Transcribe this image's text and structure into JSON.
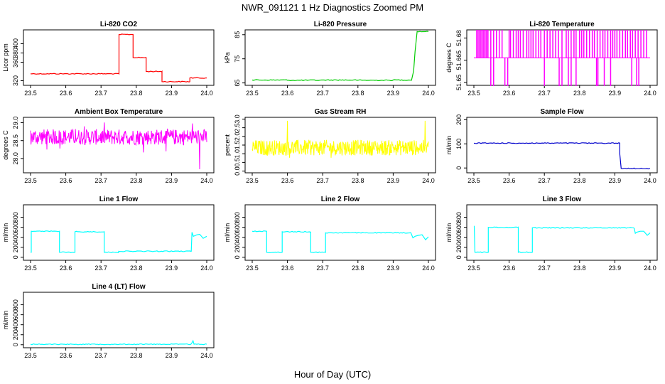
{
  "main_title": "NWR_091121  1 Hz Diagnostics Zoomed PM",
  "xlabel": "Hour of Day (UTC)",
  "chart_data": [
    {
      "type": "line",
      "title": "Li-820 CO2",
      "ylabel": "Licor ppm",
      "color": "#ff0000",
      "xlim": [
        23.5,
        24.0
      ],
      "ylim": [
        310,
        430
      ],
      "xticks": [
        "23.5",
        "23.6",
        "23.7",
        "23.8",
        "23.9",
        "24.0"
      ],
      "yticks": [
        {
          "v": 320,
          "label": "320"
        },
        {
          "v": 360,
          "label": "360"
        },
        {
          "v": 380,
          "label": "380"
        },
        {
          "v": 400,
          "label": "400"
        }
      ],
      "series": [
        {
          "name": "CO2",
          "x": [
            23.5,
            23.751,
            23.751,
            23.791,
            23.791,
            23.828,
            23.828,
            23.873,
            23.873,
            23.952,
            23.952,
            24.0
          ],
          "y": [
            335,
            335,
            420,
            420,
            370,
            370,
            340,
            340,
            318,
            318,
            326,
            326
          ]
        }
      ]
    },
    {
      "type": "line",
      "title": "Li-820 Pressure",
      "ylabel": "kPa",
      "color": "#00cc00",
      "xlim": [
        23.5,
        24.0
      ],
      "ylim": [
        64,
        87
      ],
      "xticks": [
        "23.5",
        "23.6",
        "23.7",
        "23.8",
        "23.9",
        "24.0"
      ],
      "yticks": [
        {
          "v": 65,
          "label": "65"
        },
        {
          "v": 75,
          "label": "75"
        },
        {
          "v": 85,
          "label": "85"
        }
      ],
      "series": [
        {
          "name": "Pressure",
          "x": [
            23.5,
            23.6,
            23.7,
            23.8,
            23.9,
            23.952,
            23.958,
            23.962,
            23.968,
            24.0
          ],
          "y": [
            66.2,
            66.1,
            66.2,
            66.1,
            66.2,
            66.1,
            70,
            78,
            86.3,
            86.3
          ]
        }
      ]
    },
    {
      "type": "line",
      "title": "Li-820 Temperature",
      "ylabel": "degrees C",
      "color": "#ff00ff",
      "xlim": [
        23.5,
        24.0
      ],
      "ylim": [
        51.648,
        51.6855
      ],
      "xticks": [
        "23.5",
        "23.6",
        "23.7",
        "23.8",
        "23.9",
        "24.0"
      ],
      "yticks": [
        {
          "v": 51.65,
          "label": "51.65"
        },
        {
          "v": 51.665,
          "label": "51.665"
        },
        {
          "v": 51.68,
          "label": "51.68"
        }
      ],
      "series": [
        {
          "name": "Temperature",
          "base": 51.6666,
          "high": 51.6855,
          "low": 51.6475,
          "spikes_high": [
            23.508,
            23.512,
            23.516,
            23.52,
            23.524,
            23.528,
            23.532,
            23.536,
            23.54,
            23.548,
            23.556,
            23.564,
            23.572,
            23.58,
            23.6,
            23.604,
            23.612,
            23.62,
            23.626,
            23.632,
            23.64,
            23.65,
            23.656,
            23.662,
            23.668,
            23.676,
            23.684,
            23.69,
            23.7,
            23.708,
            23.716,
            23.724,
            23.732,
            23.74,
            23.75,
            23.762,
            23.768,
            23.776,
            23.784,
            23.79,
            23.8,
            23.806,
            23.812,
            23.82,
            23.828,
            23.836,
            23.842,
            23.85,
            23.858,
            23.866,
            23.872,
            23.88,
            23.888,
            23.894,
            23.9,
            23.906,
            23.914,
            23.922,
            23.93,
            23.936,
            23.944,
            23.95,
            23.958,
            23.966,
            23.974,
            23.982,
            23.99
          ],
          "spikes_low": [
            23.548,
            23.556,
            23.588,
            23.596,
            23.7,
            23.742,
            23.75,
            23.768,
            23.776,
            23.79,
            23.848,
            23.852,
            23.87,
            23.888,
            23.948,
            23.962,
            23.968
          ]
        }
      ]
    },
    {
      "type": "line",
      "title": "Ambient Box Temperature",
      "ylabel": "degrees C",
      "color": "#ff00ff",
      "xlim": [
        23.5,
        24.0
      ],
      "ylim": [
        27.6,
        29.15
      ],
      "xticks": [
        "23.5",
        "23.6",
        "23.7",
        "23.8",
        "23.9",
        "24.0"
      ],
      "yticks": [
        {
          "v": 28.0,
          "label": "28.0"
        },
        {
          "v": 28.5,
          "label": "28.5"
        },
        {
          "v": 29.0,
          "label": "29.0"
        }
      ],
      "series": [
        {
          "name": "Box Temp",
          "mean": 28.6,
          "noise": 0.22,
          "spike_low": 27.7
        }
      ]
    },
    {
      "type": "line",
      "title": "Gas Stream RH",
      "ylabel": "percent",
      "color": "#ffff00",
      "xlim": [
        23.5,
        24.0
      ],
      "ylim": [
        -0.1,
        3.1
      ],
      "xticks": [
        "23.5",
        "23.6",
        "23.7",
        "23.8",
        "23.9",
        "24.0"
      ],
      "yticks": [
        {
          "v": 0.0,
          "label": "0.0"
        },
        {
          "v": 0.5,
          "label": "0.5"
        },
        {
          "v": 1.0,
          "label": "1.0"
        },
        {
          "v": 1.5,
          "label": "1.5"
        },
        {
          "v": 2.0,
          "label": "2.0"
        },
        {
          "v": 2.5,
          "label": "2.5"
        },
        {
          "v": 3.0,
          "label": "3.0"
        }
      ],
      "series": [
        {
          "name": "RH",
          "mean": 1.35,
          "noise": 0.45,
          "spike_high": 2.9
        }
      ]
    },
    {
      "type": "line",
      "title": "Sample Flow",
      "ylabel": "ml/min",
      "color": "#0000cc",
      "xlim": [
        23.5,
        24.0
      ],
      "ylim": [
        -20,
        210
      ],
      "xticks": [
        "23.5",
        "23.6",
        "23.7",
        "23.8",
        "23.9",
        "24.0"
      ],
      "yticks": [
        {
          "v": 0,
          "label": "0"
        },
        {
          "v": 100,
          "label": "100"
        },
        {
          "v": 200,
          "label": "200"
        }
      ],
      "series": [
        {
          "name": "Sample Flow",
          "x": [
            23.5,
            23.914,
            23.914,
            23.918,
            24.0
          ],
          "y": [
            103,
            103,
            60,
            -2,
            -2
          ]
        }
      ]
    },
    {
      "type": "line",
      "title": "Line 1 Flow",
      "ylabel": "ml/min",
      "color": "#00ffff",
      "xlim": [
        23.5,
        24.0
      ],
      "ylim": [
        -60,
        1050
      ],
      "xticks": [
        "23.5",
        "23.6",
        "23.7",
        "23.8",
        "23.9",
        "24.0"
      ],
      "yticks": [
        {
          "v": 0,
          "label": "0"
        },
        {
          "v": 200,
          "label": "200"
        },
        {
          "v": 400,
          "label": "400"
        },
        {
          "v": 600,
          "label": "600"
        },
        {
          "v": 800,
          "label": "800"
        }
      ],
      "series": [
        {
          "name": "Line 1",
          "x": [
            23.5,
            23.502,
            23.502,
            23.582,
            23.582,
            23.626,
            23.626,
            23.709,
            23.709,
            23.75,
            23.75,
            23.956,
            23.958,
            23.962,
            23.972,
            23.98,
            23.99,
            24.0
          ],
          "y": [
            100,
            100,
            520,
            520,
            100,
            100,
            510,
            510,
            100,
            100,
            120,
            120,
            500,
            420,
            450,
            460,
            380,
            420
          ]
        }
      ]
    },
    {
      "type": "line",
      "title": "Line 2 Flow",
      "ylabel": "ml/min",
      "color": "#00ffff",
      "xlim": [
        23.5,
        24.0
      ],
      "ylim": [
        -60,
        1050
      ],
      "xticks": [
        "23.5",
        "23.6",
        "23.7",
        "23.8",
        "23.9",
        "24.0"
      ],
      "yticks": [
        {
          "v": 0,
          "label": "0"
        },
        {
          "v": 200,
          "label": "200"
        },
        {
          "v": 400,
          "label": "400"
        },
        {
          "v": 600,
          "label": "600"
        },
        {
          "v": 800,
          "label": "800"
        }
      ],
      "series": [
        {
          "name": "Line 2",
          "x": [
            23.5,
            23.541,
            23.541,
            23.585,
            23.585,
            23.666,
            23.666,
            23.708,
            23.708,
            23.95,
            23.956,
            23.962,
            23.972,
            23.982,
            23.992,
            24.0
          ],
          "y": [
            520,
            520,
            100,
            100,
            510,
            510,
            100,
            100,
            490,
            490,
            390,
            420,
            440,
            450,
            350,
            410
          ]
        }
      ]
    },
    {
      "type": "line",
      "title": "Line 3 Flow",
      "ylabel": "ml/min",
      "color": "#00ffff",
      "xlim": [
        23.5,
        24.0
      ],
      "ylim": [
        -60,
        1050
      ],
      "xticks": [
        "23.5",
        "23.6",
        "23.7",
        "23.8",
        "23.9",
        "24.0"
      ],
      "yticks": [
        {
          "v": 0,
          "label": "0"
        },
        {
          "v": 200,
          "label": "200"
        },
        {
          "v": 400,
          "label": "400"
        },
        {
          "v": 600,
          "label": "600"
        },
        {
          "v": 800,
          "label": "800"
        }
      ],
      "series": [
        {
          "name": "Line 3",
          "x": [
            23.5,
            23.501,
            23.503,
            23.541,
            23.541,
            23.626,
            23.626,
            23.666,
            23.666,
            23.955,
            23.958,
            23.962,
            23.972,
            23.982,
            23.992,
            24.0
          ],
          "y": [
            620,
            620,
            100,
            100,
            600,
            600,
            100,
            100,
            590,
            580,
            480,
            500,
            520,
            520,
            440,
            490
          ]
        }
      ]
    },
    {
      "type": "line",
      "title": "Line 4 (LT) Flow",
      "ylabel": "ml/min",
      "color": "#00ffff",
      "xlim": [
        23.5,
        24.0
      ],
      "ylim": [
        -60,
        1050
      ],
      "xticks": [
        "23.5",
        "23.6",
        "23.7",
        "23.8",
        "23.9",
        "24.0"
      ],
      "yticks": [
        {
          "v": 0,
          "label": "0"
        },
        {
          "v": 200,
          "label": "200"
        },
        {
          "v": 400,
          "label": "400"
        },
        {
          "v": 600,
          "label": "600"
        },
        {
          "v": 800,
          "label": "800"
        }
      ],
      "series": [
        {
          "name": "Line 4",
          "x": [
            23.5,
            23.955,
            23.958,
            23.961,
            23.964,
            24.0
          ],
          "y": [
            10,
            10,
            40,
            80,
            10,
            10
          ]
        }
      ]
    }
  ]
}
